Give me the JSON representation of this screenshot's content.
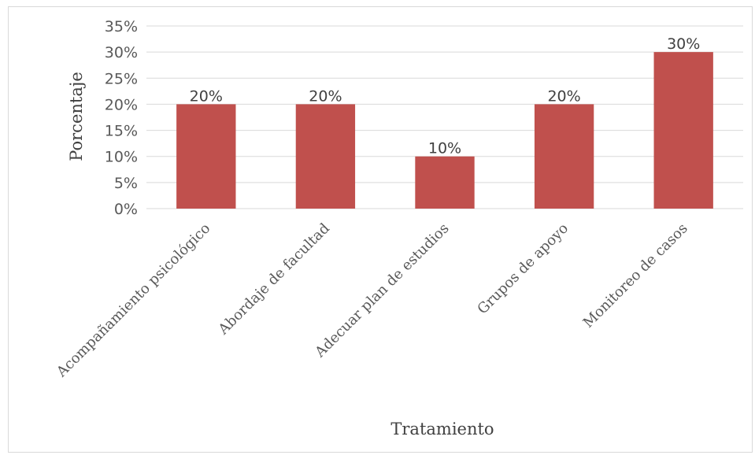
{
  "chart_data": {
    "type": "bar",
    "categories": [
      "Acompañamiento psicológico",
      "Abordaje de facultad",
      "Adecuar plan de estudios",
      "Grupos de apoyo",
      "Monitoreo de casos"
    ],
    "values": [
      20,
      20,
      10,
      20,
      30
    ],
    "data_labels": [
      "20%",
      "20%",
      "10%",
      "20%",
      "30%"
    ],
    "title": "",
    "xlabel": "Tratamiento",
    "ylabel": "Porcentaje",
    "ylim": [
      0,
      35
    ],
    "yticks": [
      0,
      5,
      10,
      15,
      20,
      25,
      30,
      35
    ],
    "ytick_labels": [
      "0%",
      "5%",
      "10%",
      "15%",
      "20%",
      "25%",
      "30%",
      "35%"
    ],
    "grid": true,
    "legend": "none",
    "bar_color": "#c0504d",
    "grid_color": "#d9d9d9"
  }
}
